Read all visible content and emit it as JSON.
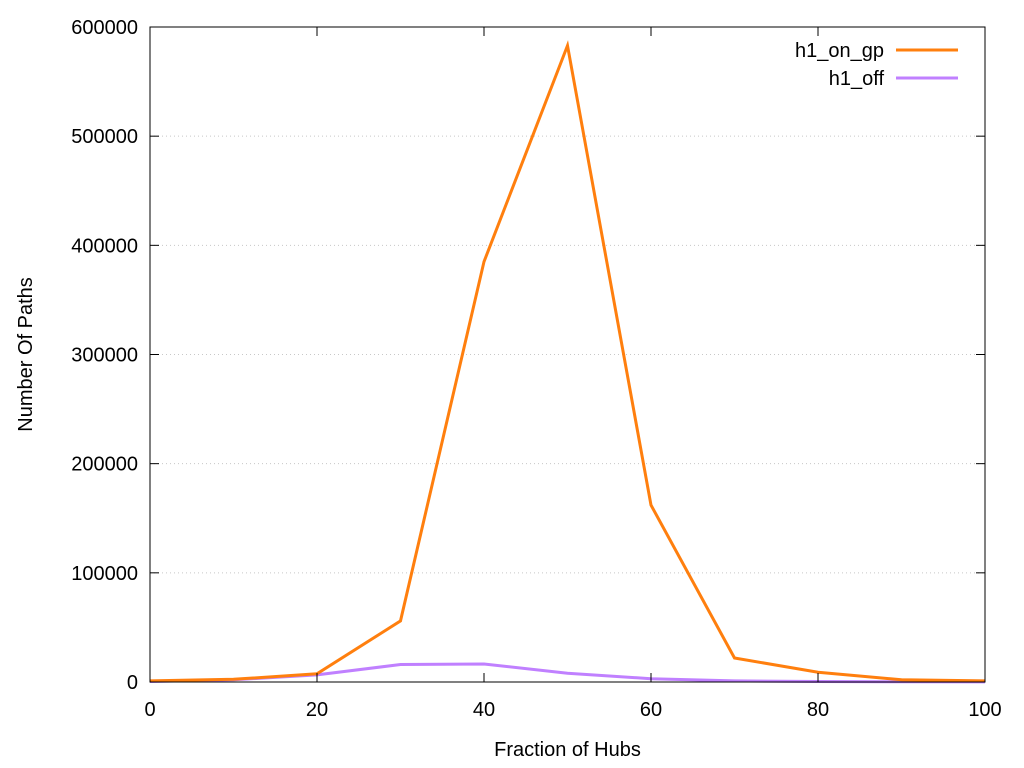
{
  "chart_data": {
    "type": "line",
    "title": "",
    "xlabel": "Fraction of Hubs",
    "ylabel": "Number Of Paths",
    "xlim": [
      0,
      100
    ],
    "ylim": [
      0,
      600000
    ],
    "xticks": [
      0,
      20,
      40,
      60,
      80,
      100
    ],
    "yticks": [
      0,
      100000,
      200000,
      300000,
      400000,
      500000,
      600000
    ],
    "grid": "horizontal-dotted",
    "legend_position": "top-right",
    "x": [
      0,
      10,
      20,
      30,
      40,
      50,
      60,
      70,
      80,
      90,
      100
    ],
    "series": [
      {
        "name": "h1_on_gp",
        "color": "#ff7f0e",
        "values": [
          1000,
          2500,
          7500,
          56000,
          385000,
          583000,
          162000,
          22000,
          9000,
          2000,
          1000
        ]
      },
      {
        "name": "h1_off",
        "color": "#c080ff",
        "values": [
          500,
          2000,
          6500,
          16000,
          16500,
          8000,
          3000,
          1000,
          500,
          200,
          100
        ]
      }
    ]
  }
}
